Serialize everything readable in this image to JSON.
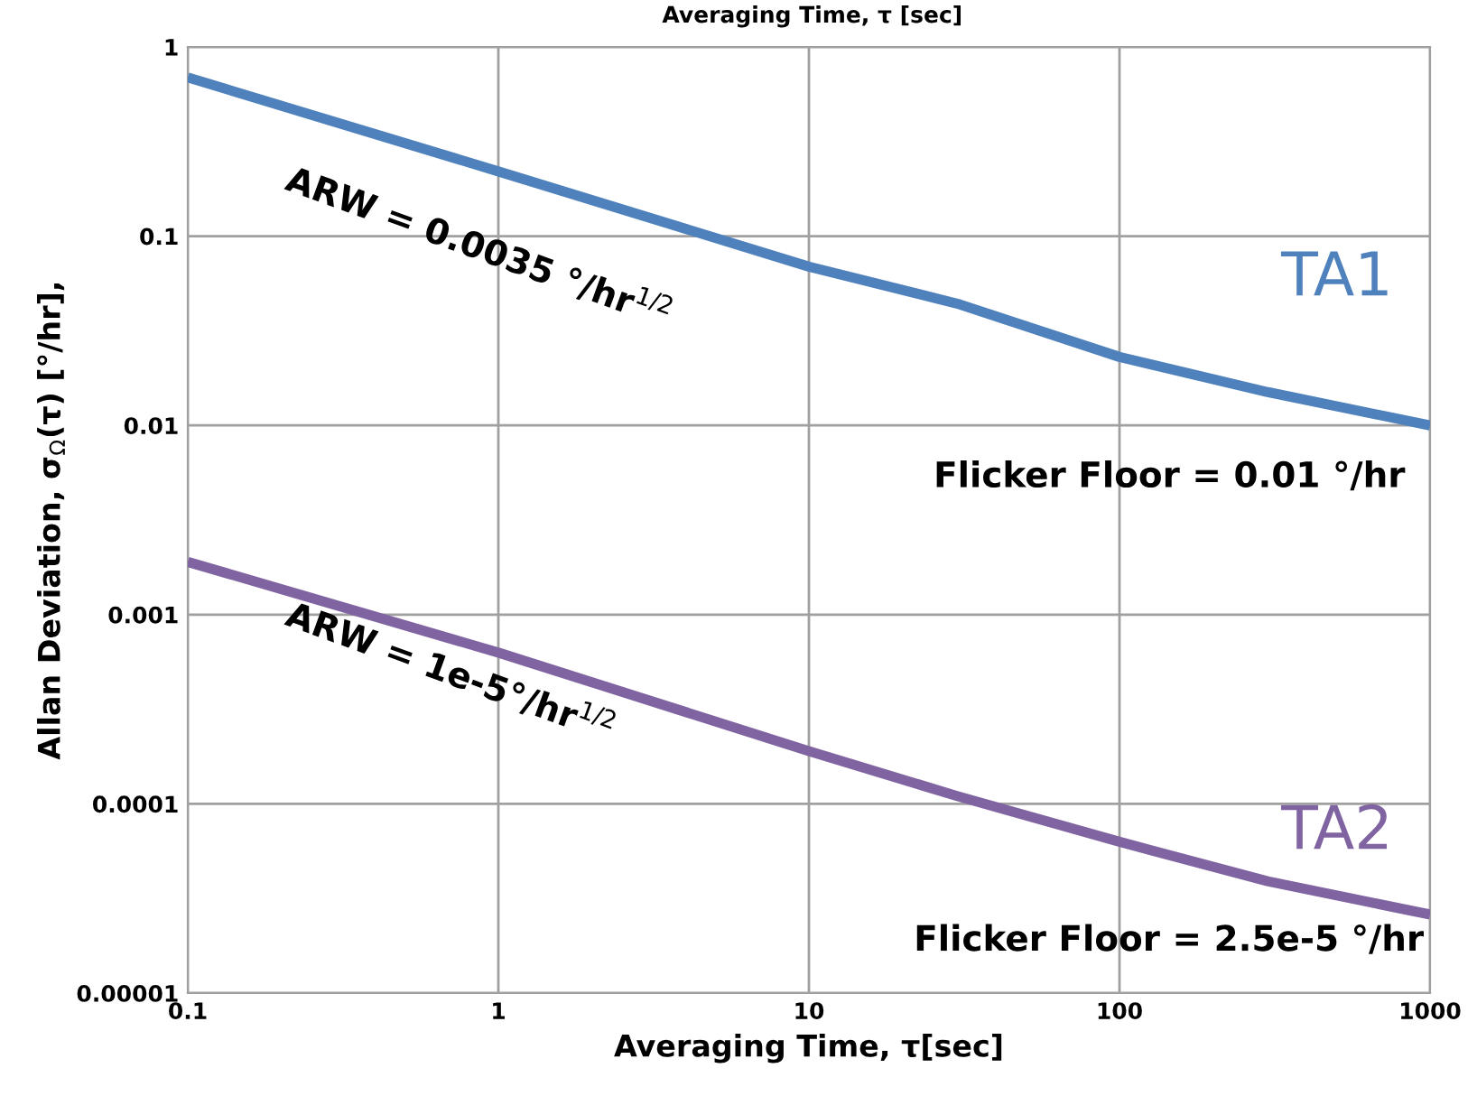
{
  "chart_data": {
    "type": "line",
    "title": "Averaging Time, τ [sec]",
    "xlabel": "Averaging Time, τ[sec]",
    "ylabel": "Allan Deviation, σ$_{Ω}$(τ) [°/hr],",
    "log": "xy",
    "grid": true,
    "marker": "none",
    "line_style": "solid",
    "x": [
      0.1,
      1,
      10,
      30,
      100,
      300,
      1000
    ],
    "series": [
      {
        "name": "TA1",
        "color": "#4f81bd",
        "values": [
          0.69,
          0.22,
          0.069,
          0.044,
          0.023,
          0.015,
          0.01
        ]
      },
      {
        "name": "TA2",
        "color": "#8064a2",
        "values": [
          0.0019,
          0.00063,
          0.00019,
          0.00011,
          6.3e-05,
          3.9e-05,
          2.6e-05
        ]
      }
    ],
    "xlim": [
      0.1,
      1000
    ],
    "xticks": [
      0.1,
      1,
      10,
      100,
      1000
    ],
    "ylim": [
      1e-05,
      1
    ],
    "yticks": [
      {
        "value": 1e-05,
        "label": "0.00001"
      },
      {
        "value": 0.0001,
        "label": "0.0001"
      },
      {
        "value": 0.001,
        "label": "0.001"
      },
      {
        "value": 0.01,
        "label": "0.01"
      },
      {
        "value": 0.1,
        "label": "0.1"
      },
      {
        "value": 1,
        "label": "1"
      }
    ],
    "annotations": [
      "ARW = 0.0035 °/hr$^{1/2}$",
      "Flicker Floor = 0.01 °/hr",
      "ARW = 1e-5°/hr$^{1/2}$",
      "Flicker Floor = 2.5e-5 °/hr"
    ]
  }
}
